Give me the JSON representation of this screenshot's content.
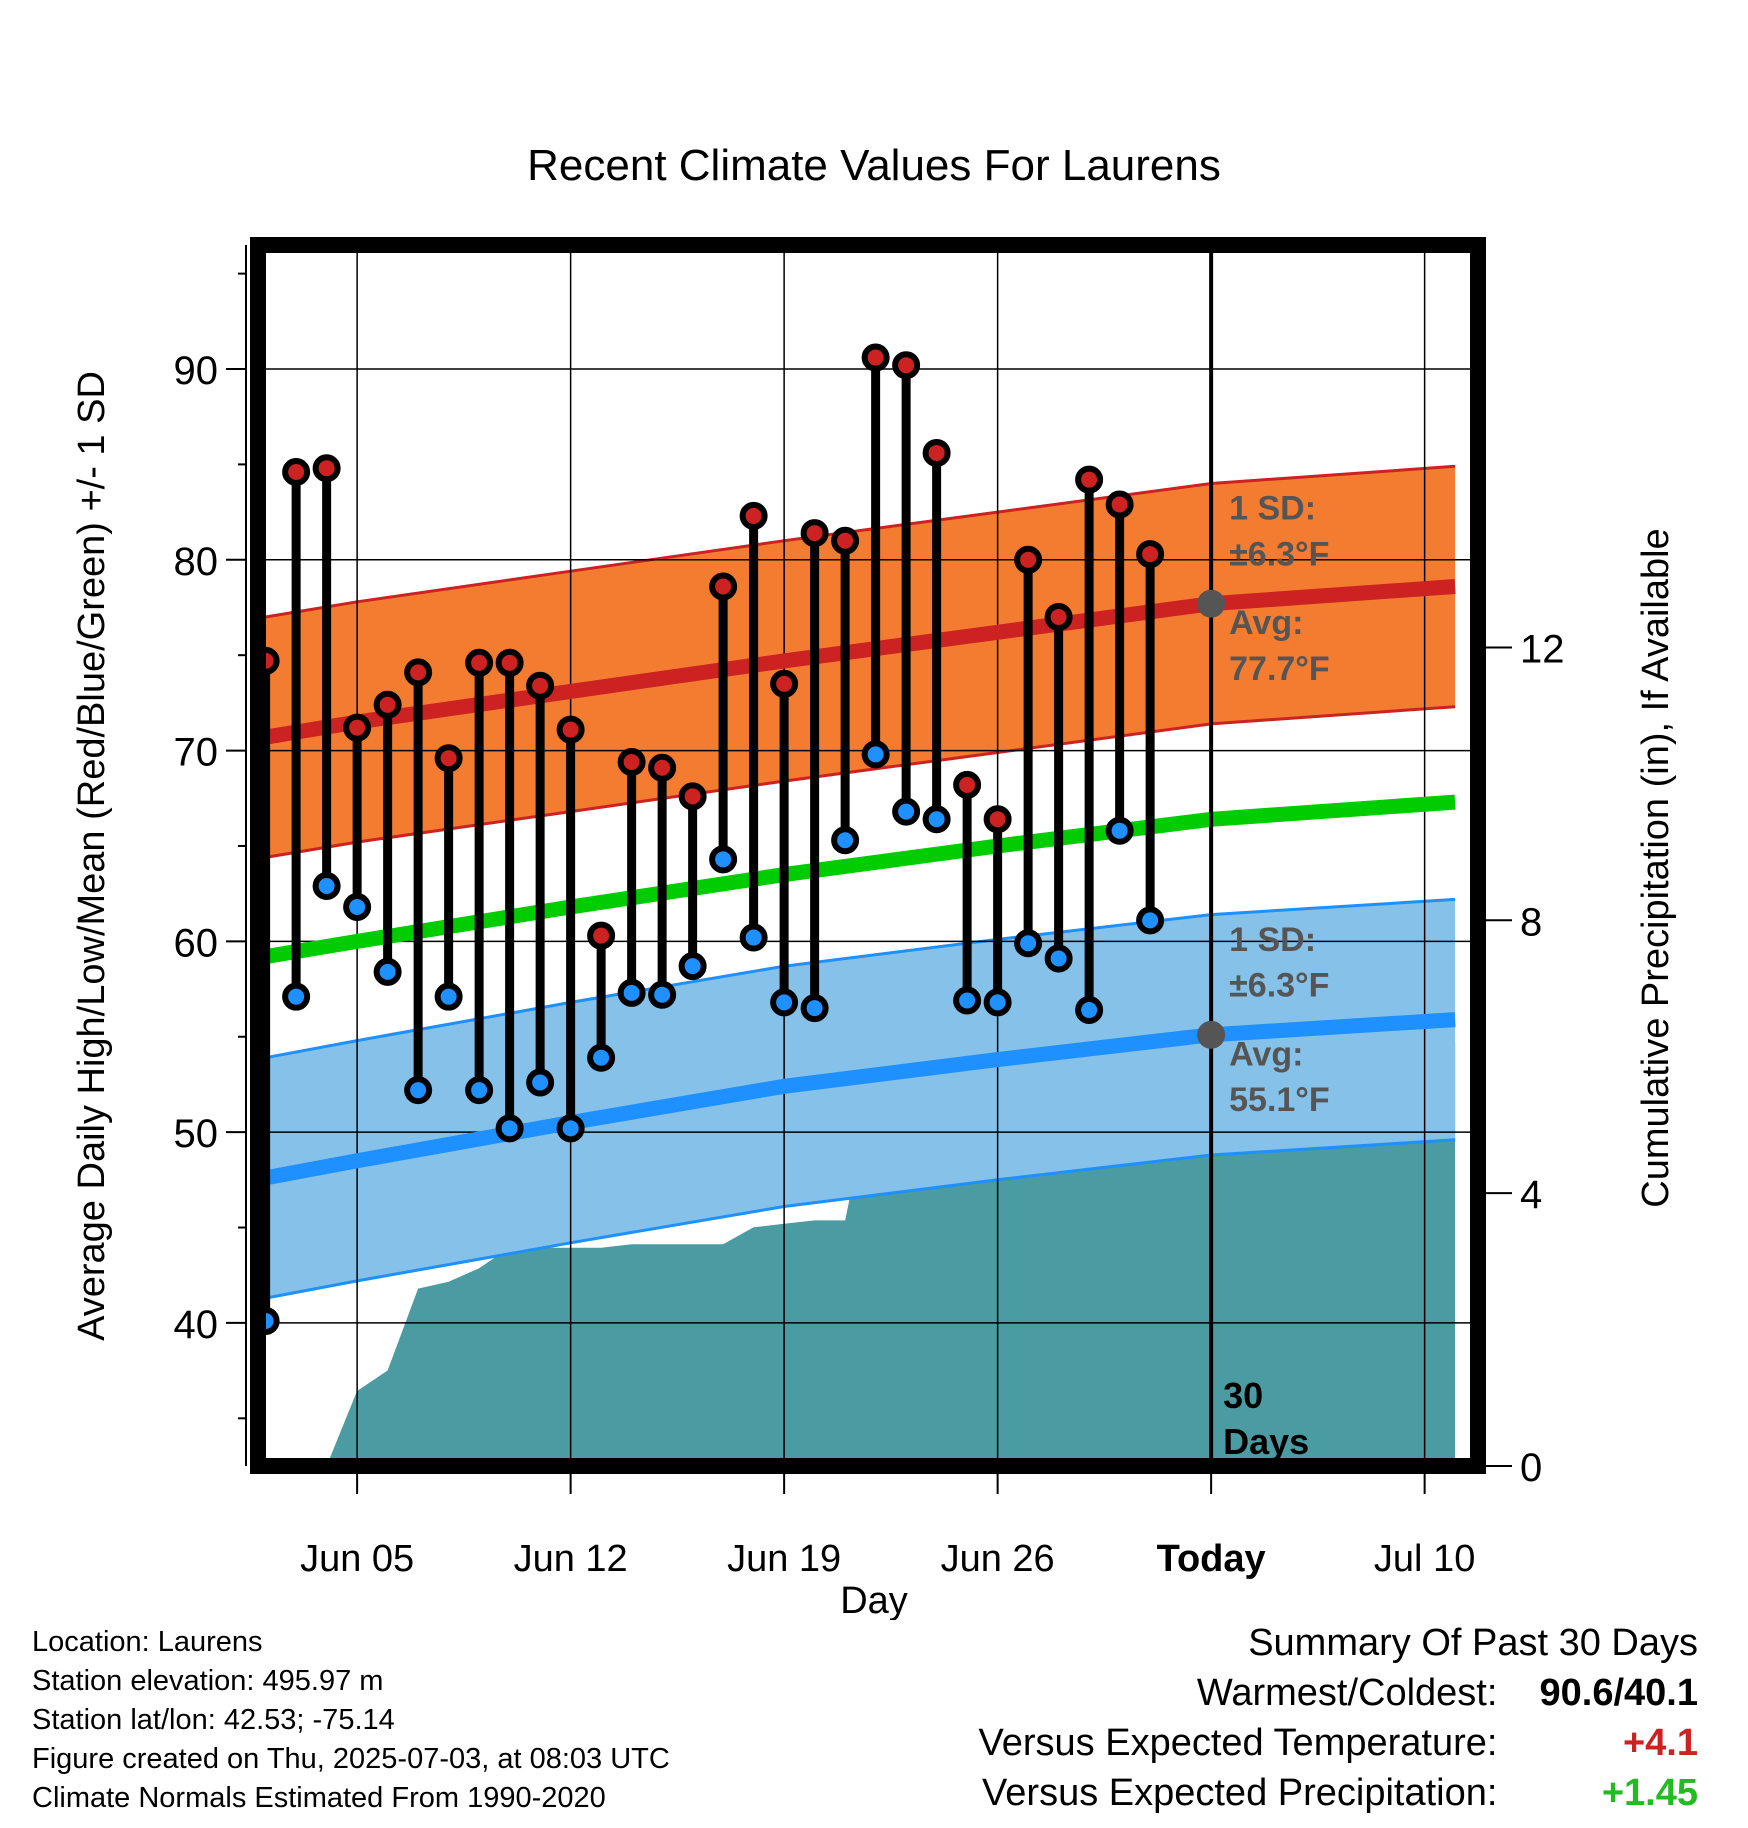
{
  "chart_data": {
    "type": "line",
    "title": "Recent Climate Values For Laurens",
    "xlabel": "Day",
    "ylabel": "Average Daily High/Low/Mean (Red/Blue/Green) +/- 1 SD",
    "y2label": "Cumulative Precipitation (in), If Available",
    "x_ticks": [
      {
        "date": "2025-06-05",
        "label": "Jun 05"
      },
      {
        "date": "2025-06-12",
        "label": "Jun 12"
      },
      {
        "date": "2025-06-19",
        "label": "Jun 19"
      },
      {
        "date": "2025-06-26",
        "label": "Jun 26"
      },
      {
        "date": "2025-07-03",
        "label": "Today"
      },
      {
        "date": "2025-07-10",
        "label": "Jul 10"
      }
    ],
    "xlim": [
      "2025-06-01 18:00",
      "2025-07-11 18:00"
    ],
    "ylim": [
      32.5,
      96.5
    ],
    "y_ticks": [
      40,
      50,
      60,
      70,
      80,
      90
    ],
    "y2lim": [
      0,
      17.9
    ],
    "y2_ticks": [
      0,
      4,
      8,
      12
    ],
    "grid": true,
    "daily_obs": {
      "dates": [
        "2025-06-02",
        "2025-06-03",
        "2025-06-04",
        "2025-06-05",
        "2025-06-06",
        "2025-06-07",
        "2025-06-08",
        "2025-06-09",
        "2025-06-10",
        "2025-06-11",
        "2025-06-12",
        "2025-06-13",
        "2025-06-14",
        "2025-06-15",
        "2025-06-16",
        "2025-06-17",
        "2025-06-18",
        "2025-06-19",
        "2025-06-20",
        "2025-06-21",
        "2025-06-22",
        "2025-06-23",
        "2025-06-24",
        "2025-06-25",
        "2025-06-26",
        "2025-06-27",
        "2025-06-28",
        "2025-06-29",
        "2025-06-30",
        "2025-07-01",
        "2025-07-02"
      ],
      "high": [
        74.7,
        84.6,
        84.8,
        71.2,
        72.4,
        74.1,
        69.6,
        74.6,
        74.6,
        73.4,
        71.1,
        60.3,
        69.4,
        69.1,
        67.6,
        78.6,
        82.3,
        73.5,
        81.4,
        81.0,
        90.6,
        90.2,
        85.6,
        68.2,
        66.4,
        80.0,
        77.0,
        84.2,
        82.9,
        80.3,
        null
      ],
      "low": [
        40.1,
        57.1,
        62.9,
        61.8,
        58.4,
        52.2,
        57.1,
        52.2,
        50.2,
        52.6,
        50.2,
        53.9,
        57.3,
        57.2,
        58.7,
        64.3,
        60.2,
        56.8,
        56.5,
        65.3,
        69.8,
        66.8,
        66.4,
        56.9,
        56.8,
        59.9,
        59.1,
        56.4,
        65.8,
        61.1,
        null
      ]
    },
    "normals": {
      "dates": [
        "2025-06-02",
        "2025-06-05",
        "2025-06-12",
        "2025-06-19",
        "2025-06-26",
        "2025-07-03",
        "2025-07-11"
      ],
      "high_avg": [
        70.7,
        71.5,
        73.1,
        74.7,
        76.2,
        77.7,
        78.6
      ],
      "low_avg": [
        47.6,
        48.5,
        50.5,
        52.4,
        53.8,
        55.1,
        55.9
      ],
      "mean_avg": [
        59.2,
        60.0,
        61.8,
        63.5,
        65.0,
        66.4,
        67.3
      ],
      "high_sd": 6.3,
      "low_sd": 6.3
    },
    "precip": {
      "dates": [
        "2025-06-02",
        "2025-06-03",
        "2025-06-04",
        "2025-06-05",
        "2025-06-06",
        "2025-06-07",
        "2025-06-08",
        "2025-06-09",
        "2025-06-10",
        "2025-06-11",
        "2025-06-12",
        "2025-06-13",
        "2025-06-14",
        "2025-06-15",
        "2025-06-16",
        "2025-06-17",
        "2025-06-18",
        "2025-06-19",
        "2025-06-20",
        "2025-06-21",
        "2025-06-22",
        "2025-06-23",
        "2025-06-24",
        "2025-06-25",
        "2025-06-26",
        "2025-06-27",
        "2025-06-28",
        "2025-06-29",
        "2025-06-30",
        "2025-07-01",
        "2025-07-02",
        "2025-07-03",
        "2025-07-11"
      ],
      "cumulative": [
        0,
        0,
        0,
        1.1,
        1.4,
        2.6,
        2.7,
        2.9,
        3.2,
        3.2,
        3.2,
        3.2,
        3.25,
        3.25,
        3.25,
        3.25,
        3.5,
        3.55,
        3.6,
        3.6,
        5.75,
        5.75,
        5.75,
        5.75,
        6.1,
        6.1,
        6.1,
        6.1,
        6.2,
        6.2,
        6.2,
        6.2,
        6.2
      ]
    },
    "series": [
      {
        "name": "Average Daily High",
        "color": "#cc2222"
      },
      {
        "name": "Average Daily Low",
        "color": "#1e90ff"
      },
      {
        "name": "Average Daily Mean",
        "color": "#00cc00"
      },
      {
        "name": "Cumulative Precipitation",
        "color": "#4a9ba2"
      }
    ],
    "annotations": {
      "high_sd_label": "1 SD:",
      "high_sd_value": "±6.3°F",
      "high_avg_label": "Avg:",
      "high_avg_value": "77.7°F",
      "low_sd_label": "1 SD:",
      "low_sd_value": "±6.3°F",
      "low_avg_label": "Avg:",
      "low_avg_value": "55.1°F",
      "period_line1": "30",
      "period_line2": "Days"
    },
    "colors": {
      "high_band": "#f47c30",
      "low_band": "#85c1e9",
      "precip_fill": "#4a9ba2",
      "high_marker": "#cc2222",
      "low_marker": "#1e90ff",
      "annotation_text": "#555555"
    }
  },
  "info": {
    "location": "Location: Laurens",
    "elevation": "Station elevation: 495.97 m",
    "latlon": "Station lat/lon: 42.53; -75.14",
    "created": "Figure created on Thu, 2025-07-03, at 08:03 UTC",
    "normals": "Climate Normals Estimated From 1990-2020"
  },
  "summary": {
    "title": "Summary Of Past 30 Days",
    "warmest_label": "Warmest/Coldest:",
    "warmest_value": "90.6/40.1",
    "temp_label": "Versus Expected Temperature:",
    "temp_value": "+4.1",
    "temp_color": "#cc2222",
    "precip_label": "Versus Expected Precipitation:",
    "precip_value": "+1.45",
    "precip_color": "#22bb22"
  }
}
